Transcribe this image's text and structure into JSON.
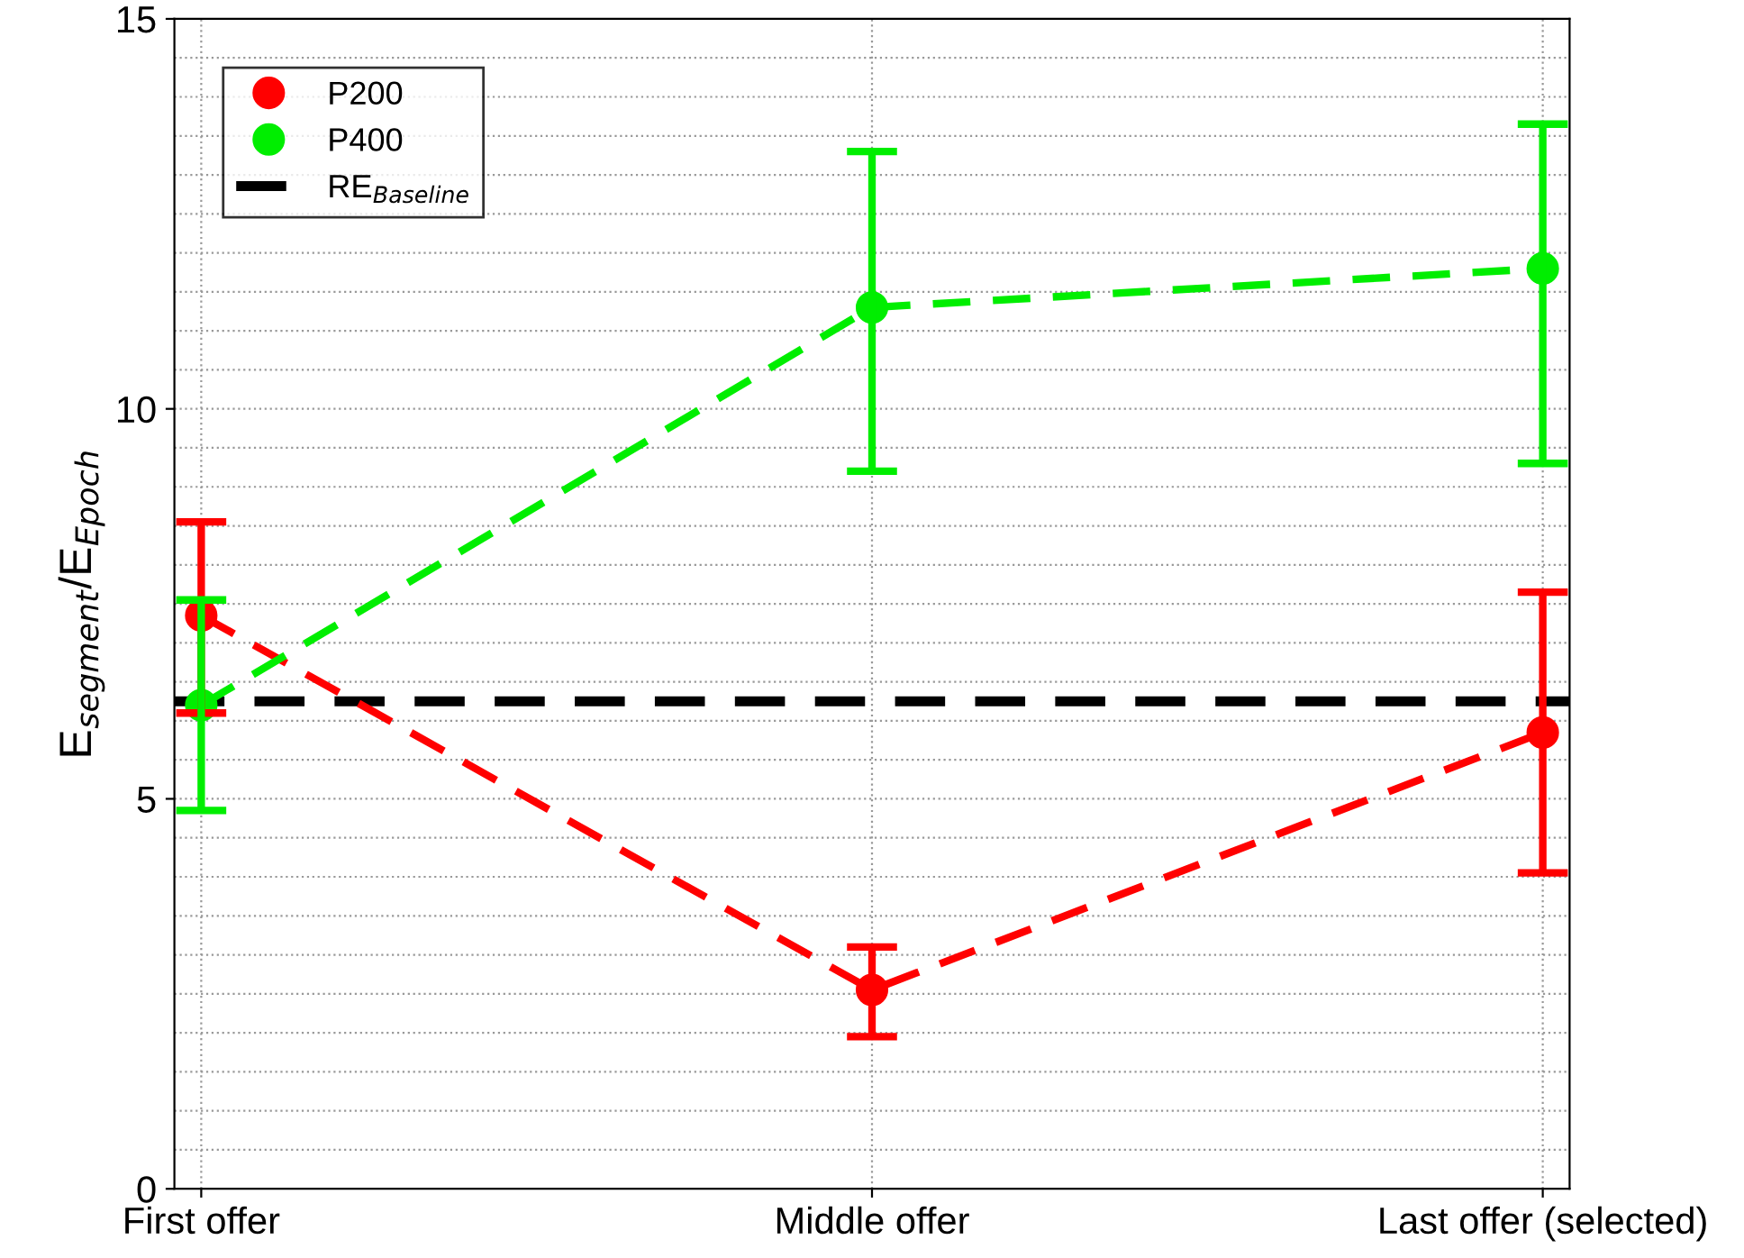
{
  "chart_data": {
    "type": "line",
    "ylabel": "E$_{segment}$/E$_{Epoch}$",
    "categories": [
      "First offer",
      "Middle offer",
      "Last offer (selected)"
    ],
    "series": [
      {
        "name": "P200",
        "color": "#ff0000",
        "values": [
          7.35,
          2.55,
          5.85
        ],
        "errors": [
          [
            6.1,
            8.55
          ],
          [
            1.95,
            3.1
          ],
          [
            4.05,
            7.65
          ]
        ]
      },
      {
        "name": "P400",
        "color": "#00ee00",
        "values": [
          6.2,
          11.3,
          11.8
        ],
        "errors": [
          [
            4.85,
            7.55
          ],
          [
            9.2,
            13.3
          ],
          [
            9.3,
            13.65
          ]
        ]
      }
    ],
    "ref_lines": [
      {
        "axis": "y",
        "value": 6.25,
        "label": "RE$_{Baseline}$",
        "color": "#000000",
        "line_style": "dashed"
      }
    ],
    "ylim": [
      0,
      15
    ],
    "yticks": [
      0,
      5,
      10,
      15
    ],
    "grid": true,
    "legend": "top left",
    "marker": "circle",
    "line_style": "dashed"
  }
}
